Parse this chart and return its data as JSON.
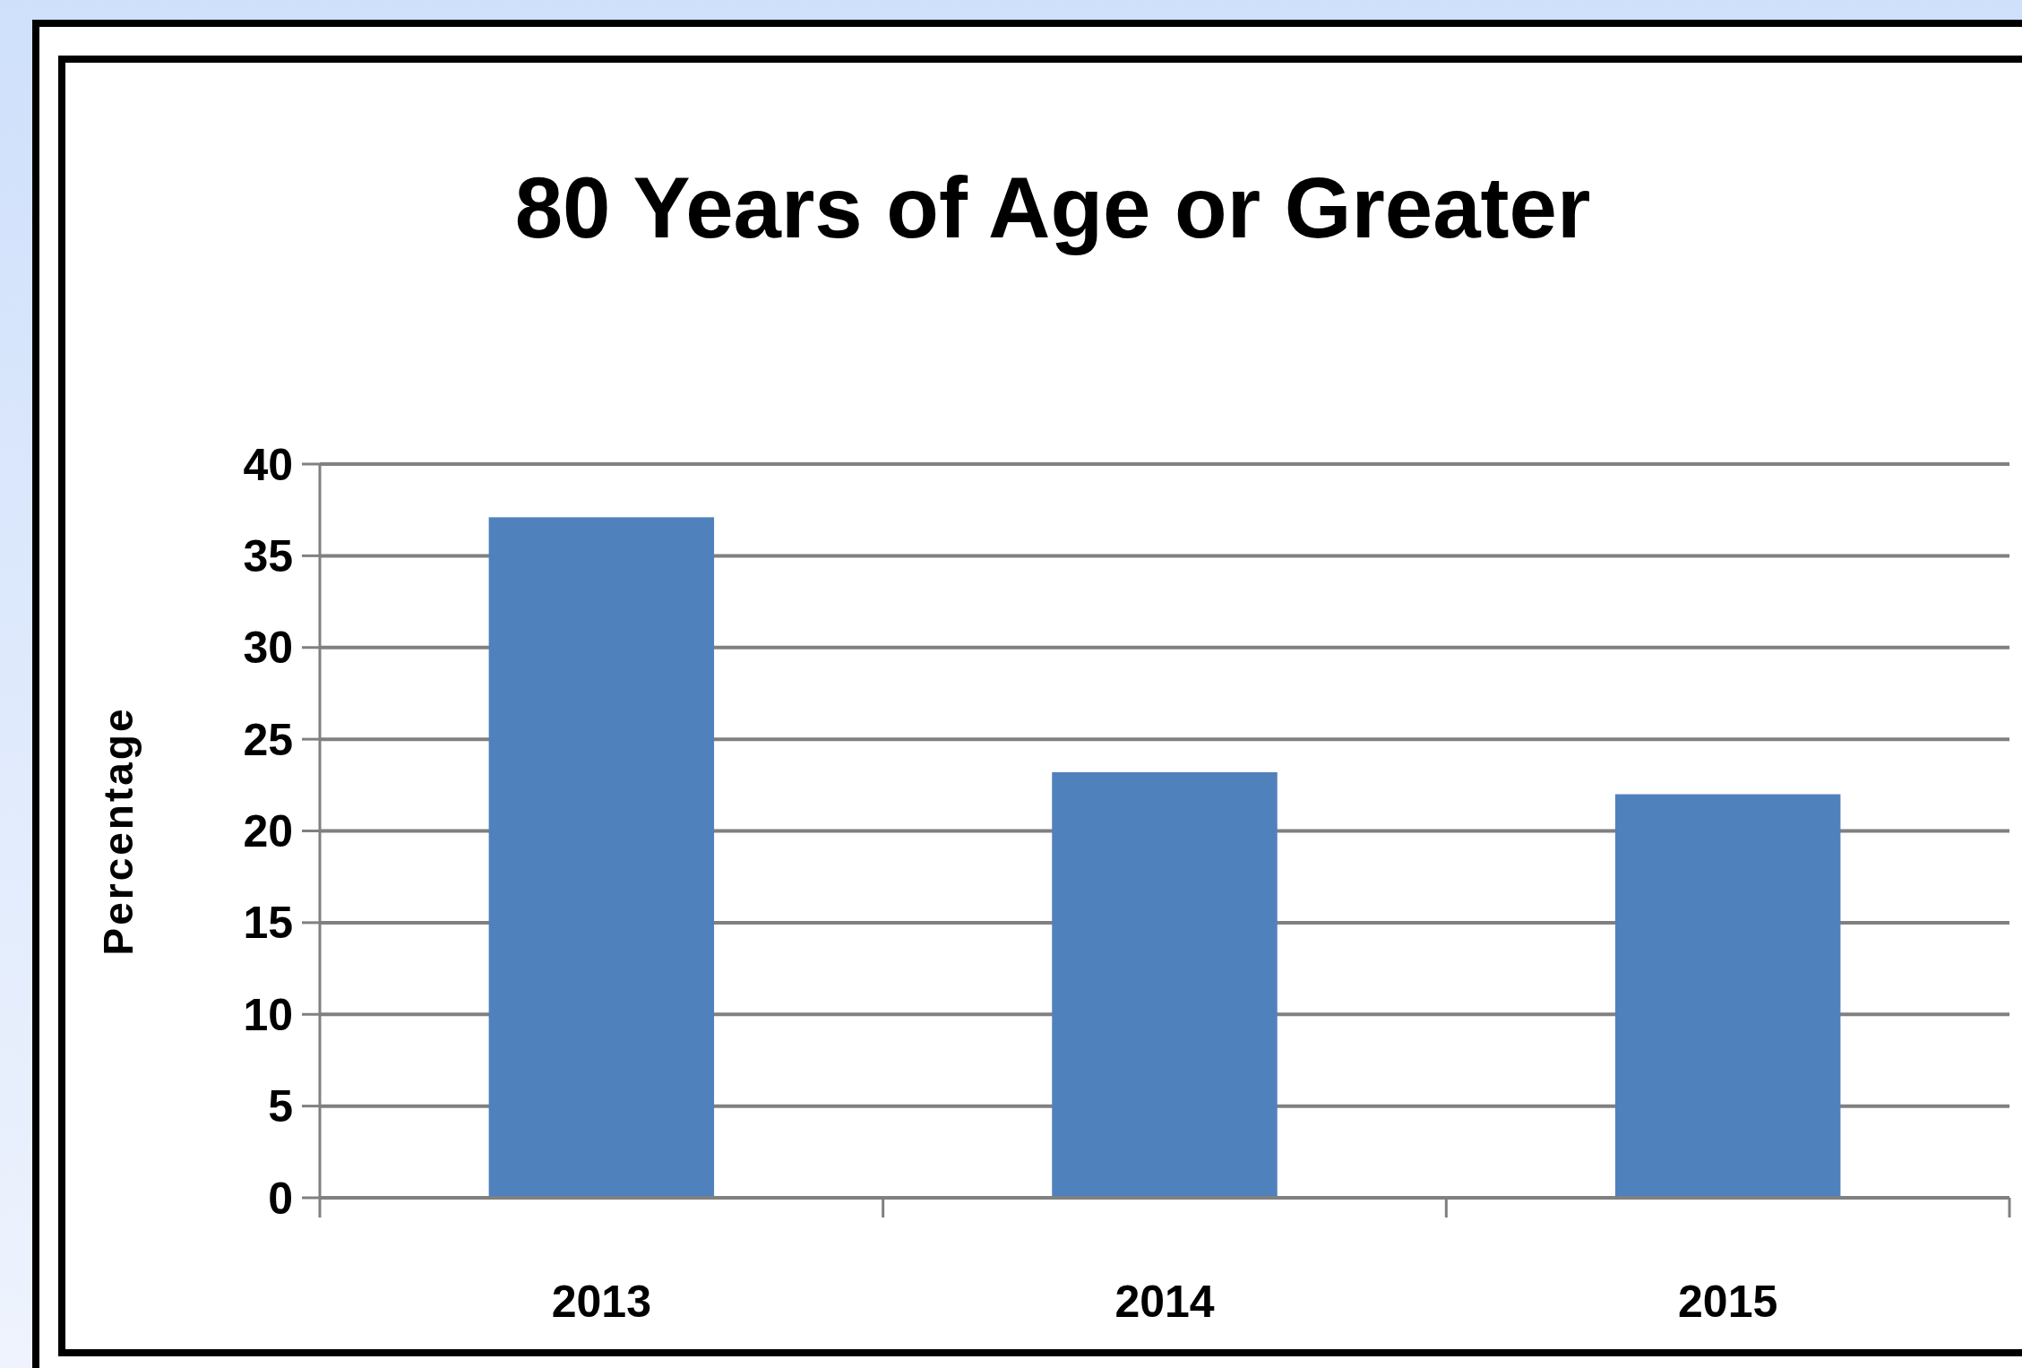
{
  "chart_data": {
    "type": "bar",
    "title": "80 Years of Age or Greater",
    "ylabel": "Percentage",
    "categories": [
      "2013",
      "2014",
      "2015"
    ],
    "values": [
      37.1,
      23.2,
      22.0
    ],
    "color": "#4f81bd",
    "ylim": [
      0,
      40
    ],
    "yticks": [
      0,
      5,
      10,
      15,
      20,
      25,
      30,
      35,
      40
    ],
    "grid": "y"
  }
}
